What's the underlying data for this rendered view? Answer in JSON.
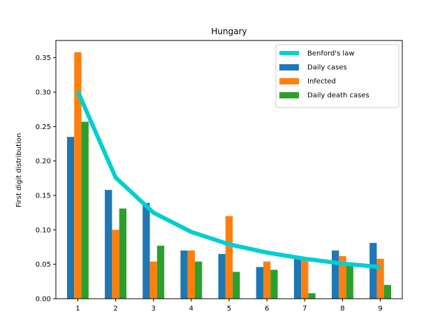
{
  "chart_data": {
    "type": "bar",
    "title": "Hungary",
    "xlabel": "",
    "ylabel": "First digit distribution",
    "categories": [
      "1",
      "2",
      "3",
      "4",
      "5",
      "6",
      "7",
      "8",
      "9"
    ],
    "ylim": [
      0,
      0.375
    ],
    "yticks": [
      "0.00",
      "0.05",
      "0.10",
      "0.15",
      "0.20",
      "0.25",
      "0.30",
      "0.35"
    ],
    "grid": false,
    "legend_position": "top-right",
    "line_series": {
      "name": "Benford's law",
      "color": "#00cfd1",
      "values": [
        0.301,
        0.176,
        0.125,
        0.097,
        0.079,
        0.067,
        0.058,
        0.051,
        0.046
      ]
    },
    "series": [
      {
        "name": "Daily cases",
        "color": "#1f77b4",
        "values": [
          0.235,
          0.158,
          0.139,
          0.07,
          0.065,
          0.046,
          0.06,
          0.07,
          0.081
        ]
      },
      {
        "name": "Infected",
        "color": "#ff7f0e",
        "values": [
          0.358,
          0.1,
          0.054,
          0.07,
          0.12,
          0.054,
          0.06,
          0.062,
          0.058
        ]
      },
      {
        "name": "Daily death cases",
        "color": "#2ca02c",
        "values": [
          0.257,
          0.131,
          0.077,
          0.054,
          0.039,
          0.042,
          0.008,
          0.05,
          0.02
        ]
      }
    ]
  }
}
